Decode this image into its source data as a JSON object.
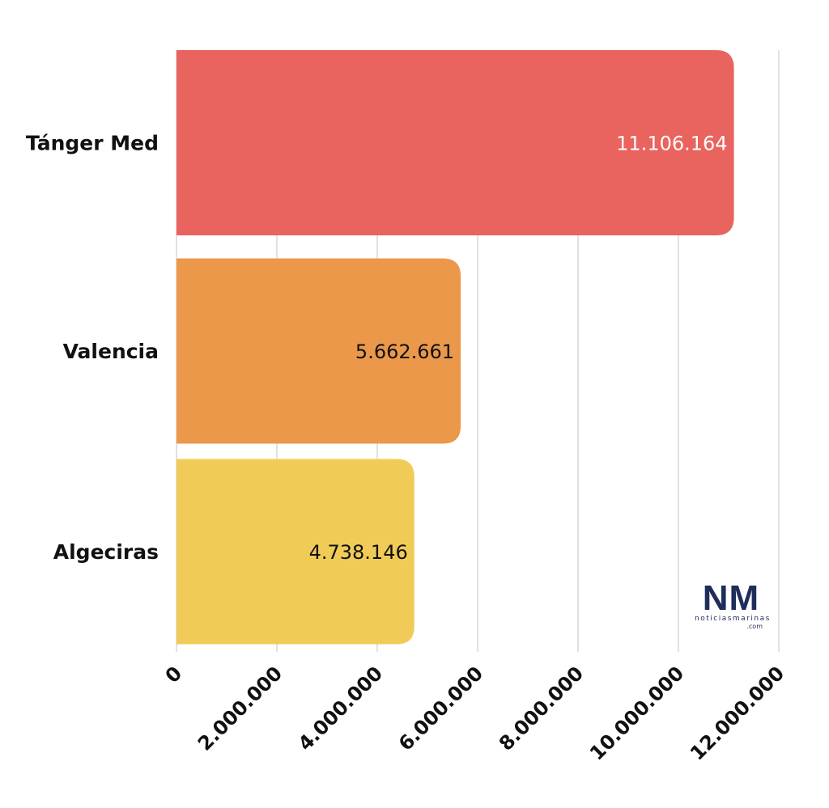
{
  "chart_data": {
    "type": "bar",
    "orientation": "horizontal",
    "categories": [
      "Tánger Med",
      "Valencia",
      "Algeciras"
    ],
    "values": [
      11106164,
      5662661,
      4738146
    ],
    "value_labels": [
      "11.106.164",
      "5.662.661",
      "4.738.146"
    ],
    "colors": [
      "#e9635f",
      "#ec984b",
      "#f0cb57"
    ],
    "value_label_colors": [
      "#ffffff",
      "#111111",
      "#111111"
    ],
    "xlim": [
      0,
      12000000
    ],
    "x_ticks": [
      0,
      2000000,
      4000000,
      6000000,
      8000000,
      10000000,
      12000000
    ],
    "x_tick_labels": [
      "0",
      "2.000.000",
      "4.000.000",
      "6.000.000",
      "8.000.000",
      "10.000.000",
      "12.000.000"
    ],
    "grid": "vertical",
    "title": "",
    "xlabel": "",
    "ylabel": ""
  },
  "logo": {
    "mark": "NM",
    "text": "noticiasmarinas",
    "tld": ".com"
  }
}
